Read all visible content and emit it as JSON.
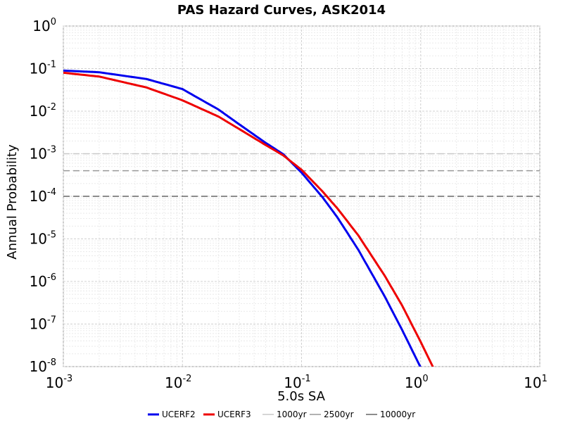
{
  "chart_data": {
    "type": "line",
    "title": "PAS Hazard Curves, ASK2014",
    "xlabel": "5.0s SA",
    "ylabel": "Annual Probability",
    "xscale": "log",
    "yscale": "log",
    "xlim": [
      0.001,
      10
    ],
    "ylim": [
      1e-08,
      1
    ],
    "grid": true,
    "legend_position": "bottom",
    "x_tick_labels": [
      {
        "value": 0.001,
        "base": "10",
        "exp": "-3"
      },
      {
        "value": 0.01,
        "base": "10",
        "exp": "-2"
      },
      {
        "value": 0.1,
        "base": "10",
        "exp": "-1"
      },
      {
        "value": 1,
        "base": "10",
        "exp": "0"
      },
      {
        "value": 10,
        "base": "10",
        "exp": "1"
      }
    ],
    "y_tick_labels": [
      {
        "value": 1,
        "base": "10",
        "exp": "0"
      },
      {
        "value": 0.1,
        "base": "10",
        "exp": "-1"
      },
      {
        "value": 0.01,
        "base": "10",
        "exp": "-2"
      },
      {
        "value": 0.001,
        "base": "10",
        "exp": "-3"
      },
      {
        "value": 0.0001,
        "base": "10",
        "exp": "-4"
      },
      {
        "value": 1e-05,
        "base": "10",
        "exp": "-5"
      },
      {
        "value": 1e-06,
        "base": "10",
        "exp": "-6"
      },
      {
        "value": 1e-07,
        "base": "10",
        "exp": "-7"
      },
      {
        "value": 1e-08,
        "base": "10",
        "exp": "-8"
      }
    ],
    "series": [
      {
        "name": "UCERF2",
        "color": "#0000ee",
        "x": [
          0.001,
          0.002,
          0.005,
          0.01,
          0.02,
          0.03,
          0.05,
          0.07,
          0.1,
          0.15,
          0.2,
          0.3,
          0.5,
          0.7,
          1.0
        ],
        "y": [
          0.09,
          0.082,
          0.057,
          0.033,
          0.011,
          0.0049,
          0.0018,
          0.00098,
          0.00036,
          9.5e-05,
          3.2e-05,
          5.5e-06,
          4.4e-07,
          7.2e-08,
          9.5e-09
        ]
      },
      {
        "name": "UCERF3",
        "color": "#ee0000",
        "x": [
          0.001,
          0.002,
          0.005,
          0.01,
          0.02,
          0.03,
          0.05,
          0.07,
          0.1,
          0.15,
          0.2,
          0.3,
          0.5,
          0.7,
          1.0,
          1.3
        ],
        "y": [
          0.08,
          0.065,
          0.036,
          0.018,
          0.0075,
          0.0038,
          0.0016,
          0.00092,
          0.00042,
          0.00013,
          5.2e-05,
          1.2e-05,
          1.35e-06,
          2.7e-07,
          3.8e-08,
          8.5e-09
        ]
      }
    ],
    "reference_lines": [
      {
        "name": "1000yr",
        "y": 0.001,
        "color": "#c8c8c8"
      },
      {
        "name": "2500yr",
        "y": 0.0004,
        "color": "#999999"
      },
      {
        "name": "10000yr",
        "y": 0.0001,
        "color": "#666666"
      }
    ]
  }
}
